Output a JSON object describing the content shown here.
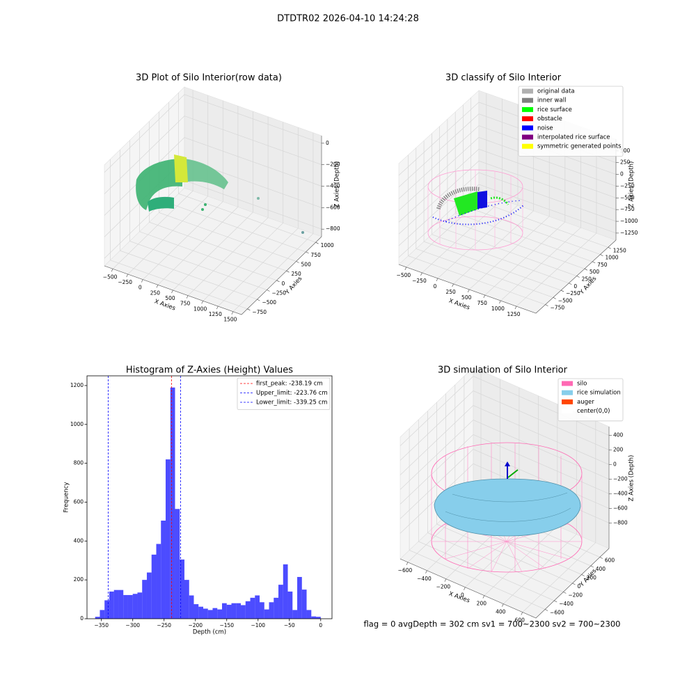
{
  "title": "DTDTR02 2026-04-10 14:24:28",
  "status_text": "flag = 0     avgDepth = 302 cm  sv1 = 700~2300  sv2 = 700~2300",
  "chart_data": [
    {
      "type": "scatter3d",
      "title": "3D Plot of Silo Interior(row data)",
      "xlabel": "X Axies",
      "ylabel": "Y Axies",
      "zlabel": "Z Axies (Depth)",
      "xlim": [
        -640,
        1640
      ],
      "ylim": [
        -900,
        1150
      ],
      "zlim": [
        -870,
        70
      ],
      "xticks": [
        {
          "value": -500,
          "label": "−500"
        },
        {
          "value": -250,
          "label": "−250"
        },
        0,
        250,
        500,
        750,
        1000,
        1250,
        1500
      ],
      "yticks": [
        {
          "value": -750,
          "label": "−750"
        },
        {
          "value": -500,
          "label": "−500"
        },
        {
          "value": -250,
          "label": "−250"
        },
        0,
        250,
        500,
        750,
        1000
      ],
      "zticks": [
        {
          "value": -800,
          "label": "−800"
        },
        {
          "value": -600,
          "label": "−600"
        },
        {
          "value": -400,
          "label": "−400"
        },
        {
          "value": -200,
          "label": "−200"
        },
        0
      ],
      "grid": true
    },
    {
      "type": "scatter3d",
      "title": "3D classify of Silo Interior",
      "xlabel": "X Axies",
      "ylabel": "Y Axies",
      "zlabel": "Z Axies (Depth)",
      "xlim": [
        -620,
        1560
      ],
      "ylim": [
        -1050,
        1500
      ],
      "zlim": [
        -1400,
        750
      ],
      "xticks": [
        {
          "value": -500,
          "label": "−500"
        },
        {
          "value": -250,
          "label": "−250"
        },
        0,
        250,
        500,
        750,
        1000,
        1250
      ],
      "yticks": [
        {
          "value": -750,
          "label": "−750"
        },
        {
          "value": -500,
          "label": "−500"
        },
        {
          "value": -250,
          "label": "−250"
        },
        0,
        250,
        500,
        750,
        1000,
        1250
      ],
      "zticks": [
        {
          "value": -1250,
          "label": "−1250"
        },
        {
          "value": -1000,
          "label": "−1000"
        },
        {
          "value": -750,
          "label": "−750"
        },
        {
          "value": -500,
          "label": "−500"
        },
        {
          "value": -250,
          "label": "−250"
        },
        0,
        250,
        500
      ],
      "grid": true,
      "legend": [
        {
          "name": "original data",
          "color": "#b0b0b0"
        },
        {
          "name": "inner wall",
          "color": "#808080"
        },
        {
          "name": "rice surface",
          "color": "#00ff00"
        },
        {
          "name": "obstacle",
          "color": "#ff0000"
        },
        {
          "name": "noise",
          "color": "#0000ff"
        },
        {
          "name": "interpolated rice surface",
          "color": "#800080"
        },
        {
          "name": "symmetric generated points",
          "color": "#ffff00"
        }
      ]
    },
    {
      "type": "histogram",
      "title": "Histogram of Z-Axies (Height) Values",
      "xlabel": "Depth (cm)",
      "ylabel": "Frequency",
      "color": "#0000ff",
      "alpha": 0.7,
      "bins": [
        -360,
        -352.5,
        -345,
        -337.5,
        -330,
        -322.5,
        -315,
        -307.5,
        -300,
        -292.5,
        -285,
        -277.5,
        -270,
        -262.5,
        -255,
        -247.5,
        -240,
        -232.5,
        -225,
        -217.5,
        -210,
        -202.5,
        -195,
        -187.5,
        -180,
        -172.5,
        -165,
        -157.5,
        -150,
        -142.5,
        -135,
        -127.5,
        -120,
        -112.5,
        -105,
        -97.5,
        -90,
        -82.5,
        -75,
        -67.5,
        -60,
        -52.5,
        -45,
        -37.5,
        -30,
        -22.5,
        -15,
        -7.5,
        0
      ],
      "values": [
        10,
        45,
        95,
        140,
        148,
        148,
        122,
        122,
        128,
        135,
        200,
        238,
        330,
        385,
        505,
        820,
        1190,
        565,
        305,
        200,
        120,
        75,
        62,
        52,
        45,
        55,
        48,
        80,
        72,
        80,
        80,
        70,
        90,
        108,
        120,
        85,
        48,
        85,
        108,
        175,
        280,
        140,
        45,
        215,
        150,
        45,
        12,
        10
      ],
      "xlim": [
        -373,
        18
      ],
      "ylim": [
        0,
        1250
      ],
      "xticks": [
        {
          "value": -350,
          "label": "−350"
        },
        {
          "value": -300,
          "label": "−300"
        },
        {
          "value": -250,
          "label": "−250"
        },
        {
          "value": -200,
          "label": "−200"
        },
        {
          "value": -150,
          "label": "−150"
        },
        {
          "value": -100,
          "label": "−100"
        },
        {
          "value": -50,
          "label": "−50"
        },
        0
      ],
      "yticks": [
        0,
        200,
        400,
        600,
        800,
        1000,
        1200
      ],
      "vlines": [
        {
          "name": "first_peak: -238.19 cm",
          "value": -238.19,
          "color": "#ff0000"
        },
        {
          "name": "Upper_limit: -223.76 cm",
          "value": -223.76,
          "color": "#0000ff"
        },
        {
          "name": "Lower_limit: -339.25 cm",
          "value": -339.25,
          "color": "#0000ff"
        }
      ]
    },
    {
      "type": "scatter3d",
      "title": "3D simulation of Silo Interior",
      "xlabel": "X Axies",
      "ylabel": "Y Axies",
      "zlabel": "Z Axies (Depth)",
      "xlim": [
        -680,
        740
      ],
      "ylim": [
        -800,
        800
      ],
      "zlim": [
        -1150,
        520
      ],
      "xticks": [
        {
          "value": -600,
          "label": "−600"
        },
        {
          "value": -400,
          "label": "−400"
        },
        {
          "value": -200,
          "label": "−200"
        },
        0,
        200,
        400,
        600
      ],
      "yticks": [
        {
          "value": -600,
          "label": "−600"
        },
        {
          "value": -400,
          "label": "−400"
        },
        {
          "value": -200,
          "label": "−200"
        },
        0,
        200,
        400,
        600
      ],
      "zticks": [
        {
          "value": -800,
          "label": "−800"
        },
        {
          "value": -600,
          "label": "−600"
        },
        {
          "value": -400,
          "label": "−400"
        },
        {
          "value": -200,
          "label": "−200"
        },
        0,
        200,
        400
      ],
      "grid": true,
      "legend": [
        {
          "name": "silo",
          "color": "#ff69b4"
        },
        {
          "name": "rice simulation",
          "color": "#87ceeb"
        },
        {
          "name": "auger",
          "color": "#ff4500"
        },
        {
          "name": "center(0,0)",
          "color": "#ffffff"
        }
      ]
    }
  ]
}
